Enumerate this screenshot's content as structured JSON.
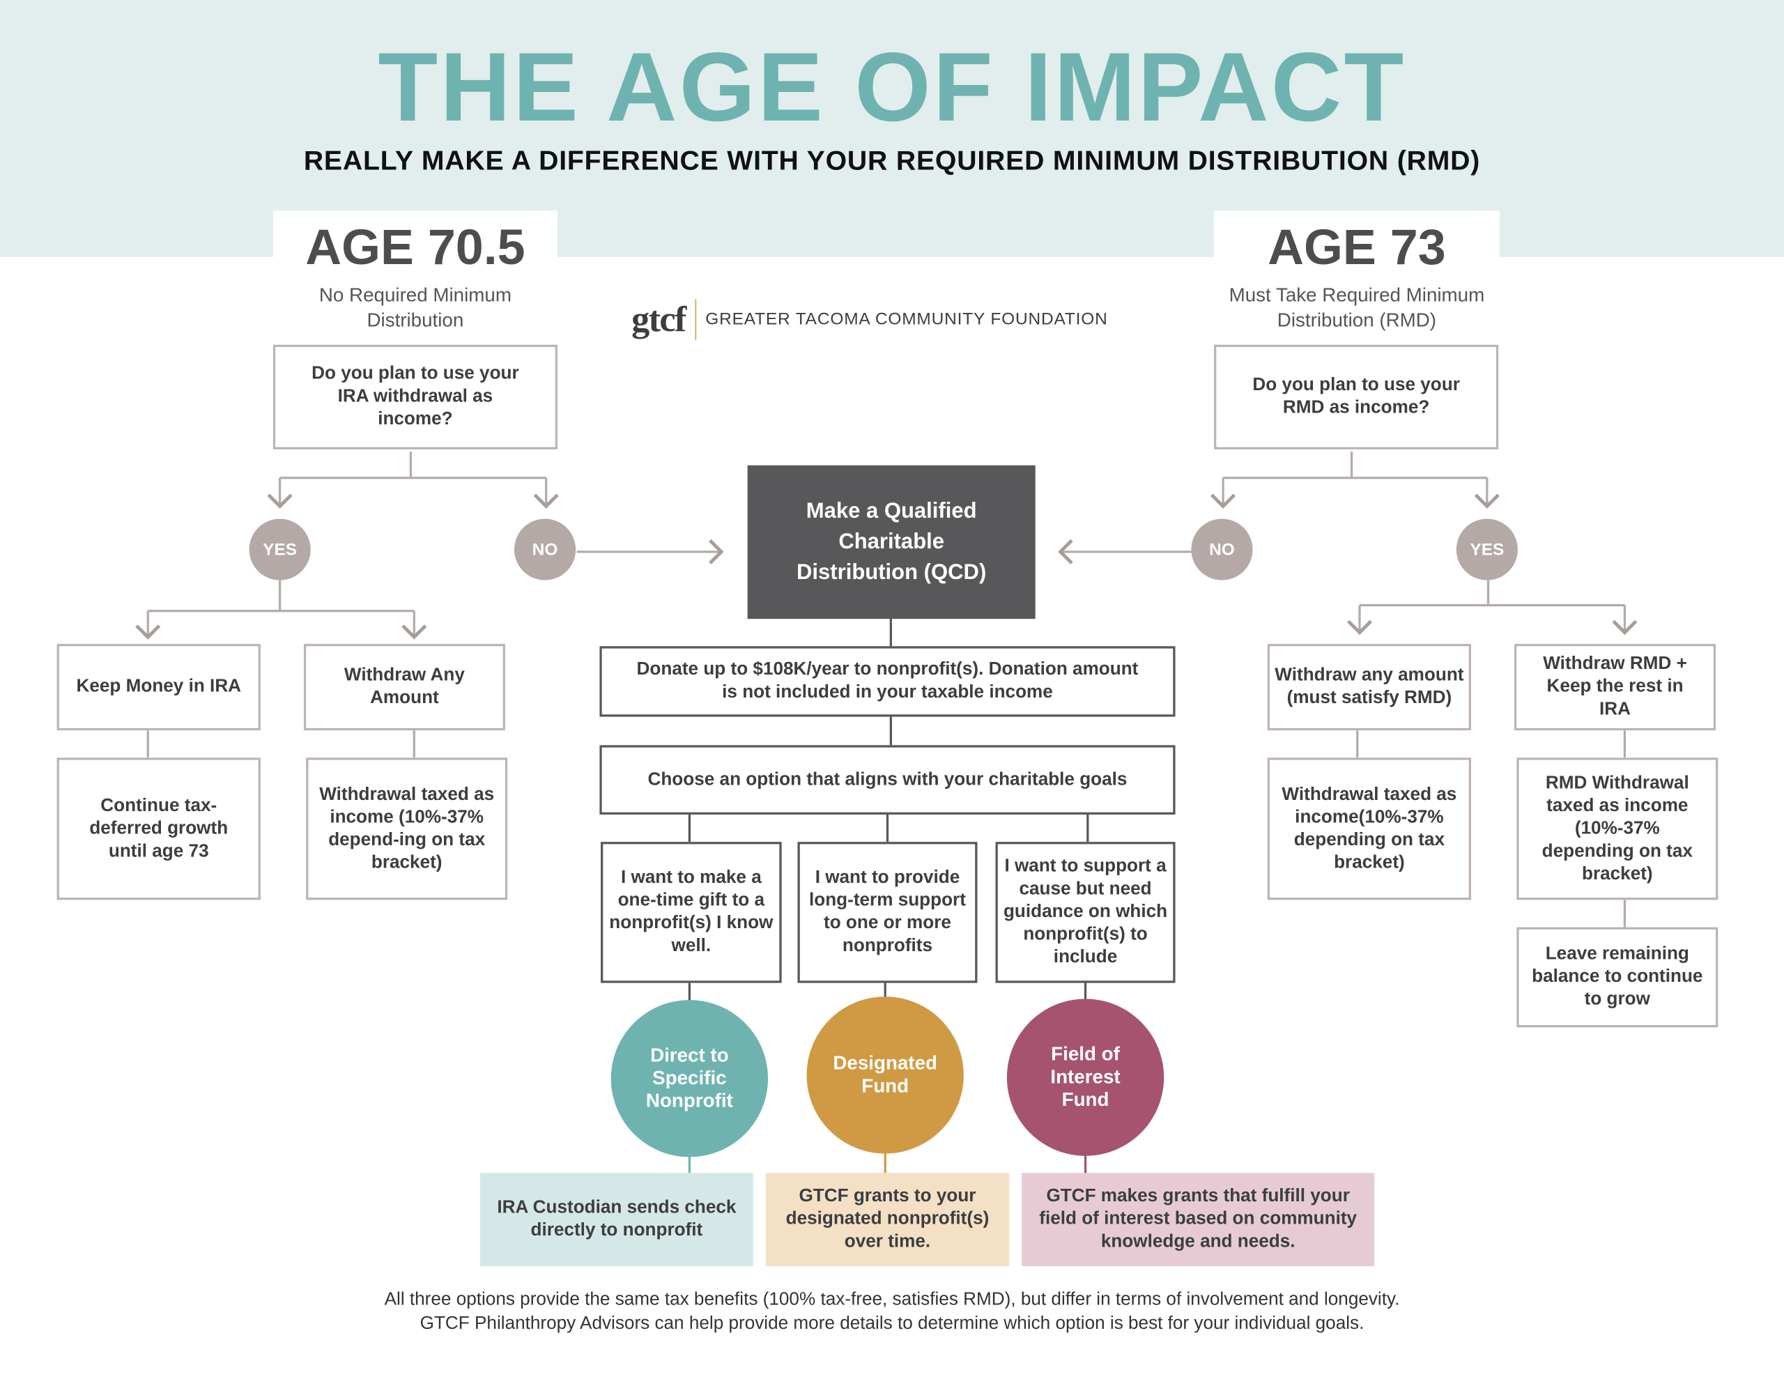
{
  "header": {
    "title": "THE AGE OF IMPACT",
    "subtitle": "REALLY MAKE A DIFFERENCE WITH YOUR REQUIRED MINIMUM DISTRIBUTION (RMD)"
  },
  "logo": {
    "mark": "gtcf",
    "name": "GREATER TACOMA COMMUNITY FOUNDATION"
  },
  "left": {
    "age": "AGE 70.5",
    "age_sub": [
      "No Required Minimum",
      "Distribution"
    ],
    "question": "Do you plan to use your IRA withdrawal as income?",
    "yes": "YES",
    "no": "NO",
    "options": [
      {
        "label": "Keep Money in IRA",
        "result": "Continue tax-deferred growth until age 73"
      },
      {
        "label": "Withdraw Any Amount",
        "result": "Withdrawal taxed as income (10%-37% depend-ing on tax bracket)"
      }
    ]
  },
  "right": {
    "age": "AGE 73",
    "age_sub": [
      "Must Take Required Minimum",
      "Distribution (RMD)"
    ],
    "question": "Do you plan to use your RMD as income?",
    "yes": "YES",
    "no": "NO",
    "options": [
      {
        "label": "Withdraw any amount (must satisfy RMD)",
        "result": "Withdrawal taxed as income(10%-37% depending on tax bracket)"
      },
      {
        "label": "Withdraw RMD + Keep the rest in IRA",
        "result": "RMD Withdrawal taxed as income (10%-37% depending on tax bracket)",
        "extra": "Leave remaining balance to continue to grow"
      }
    ]
  },
  "center": {
    "qcd": "Make a Qualified Charitable Distribution (QCD)",
    "donate": "Donate up to $108K/year to nonprofit(s). Donation amount is not included in your taxable income",
    "choose": "Choose an option that aligns with your charitable goals",
    "paths": [
      {
        "want": "I want to make a one-time gift to a nonprofit(s) I know well.",
        "fund": "Direct to Specific Nonprofit",
        "outcome": "IRA Custodian sends check directly to nonprofit",
        "color": "#6fb3b0",
        "bg": "#d4e8e7"
      },
      {
        "want": "I want to provide long-term support to one or more nonprofits",
        "fund": "Designated Fund",
        "outcome": "GTCF grants to your designated nonprofit(s) over time.",
        "color": "#d09a44",
        "bg": "#f3e0c5"
      },
      {
        "want": "I want to support a cause but need guidance on which nonprofit(s) to include",
        "fund": "Field of Interest Fund",
        "outcome": "GTCF makes grants that fulfill your field of interest based on community knowledge and needs.",
        "color": "#a6536f",
        "bg": "#e6cbd5"
      }
    ]
  },
  "footer": [
    "All three options provide the same tax benefits (100% tax-free, satisfies RMD), but differ in terms of involvement and longevity.",
    "GTCF Philanthropy Advisors can help provide more details to determine which option is best for your individual goals."
  ]
}
